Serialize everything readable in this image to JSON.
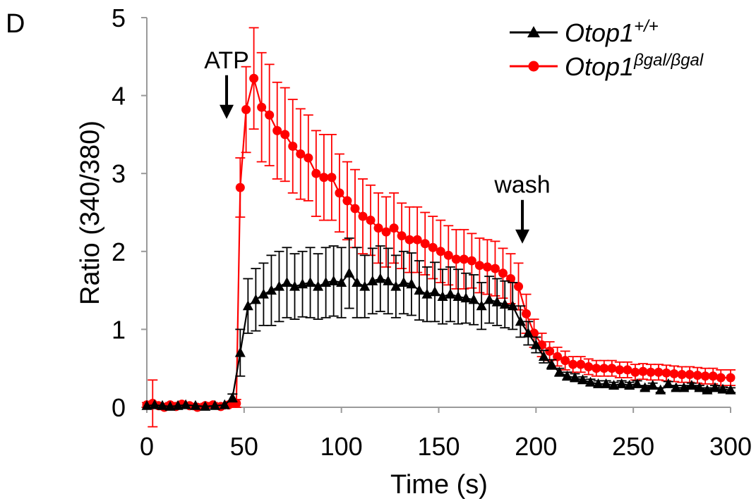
{
  "panel_label": "D",
  "chart_data": {
    "type": "line",
    "title": "",
    "xlabel": "Time (s)",
    "ylabel": "Ratio (340/380)",
    "xlim": [
      0,
      300
    ],
    "ylim": [
      0,
      5
    ],
    "xticks": [
      0,
      50,
      100,
      150,
      200,
      250,
      300
    ],
    "yticks": [
      0,
      1,
      2,
      3,
      4,
      5
    ],
    "grid": false,
    "legend": "top-right",
    "annotations": [
      {
        "text": "ATP",
        "x": 41,
        "arrow_tip_y": 3.7
      },
      {
        "text": "wash",
        "x": 193,
        "arrow_tip_y": 2.1
      }
    ],
    "series": [
      {
        "name": "Otop1+/+",
        "legend_base": "Otop1",
        "legend_sup": "+/+",
        "color": "#000000",
        "marker": "triangle",
        "points": [
          [
            0,
            0.02
          ],
          [
            4,
            0.03
          ],
          [
            8,
            0.02
          ],
          [
            12,
            0.01
          ],
          [
            16,
            0.02
          ],
          [
            20,
            0.03
          ],
          [
            25,
            0.02
          ],
          [
            30,
            0.01
          ],
          [
            35,
            0.02
          ],
          [
            40,
            0.03
          ],
          [
            44,
            0.12
          ],
          [
            48,
            0.7
          ],
          [
            52,
            1.3
          ],
          [
            56,
            1.38
          ],
          [
            60,
            1.45
          ],
          [
            64,
            1.5
          ],
          [
            68,
            1.55
          ],
          [
            72,
            1.6
          ],
          [
            76,
            1.55
          ],
          [
            80,
            1.58
          ],
          [
            84,
            1.6
          ],
          [
            88,
            1.55
          ],
          [
            92,
            1.6
          ],
          [
            96,
            1.62
          ],
          [
            100,
            1.6
          ],
          [
            104,
            1.72
          ],
          [
            108,
            1.6
          ],
          [
            112,
            1.55
          ],
          [
            116,
            1.62
          ],
          [
            120,
            1.65
          ],
          [
            124,
            1.62
          ],
          [
            128,
            1.55
          ],
          [
            132,
            1.6
          ],
          [
            136,
            1.58
          ],
          [
            140,
            1.5
          ],
          [
            144,
            1.45
          ],
          [
            148,
            1.48
          ],
          [
            152,
            1.42
          ],
          [
            156,
            1.45
          ],
          [
            160,
            1.42
          ],
          [
            164,
            1.4
          ],
          [
            168,
            1.38
          ],
          [
            172,
            1.3
          ],
          [
            176,
            1.38
          ],
          [
            180,
            1.35
          ],
          [
            184,
            1.32
          ],
          [
            188,
            1.3
          ],
          [
            192,
            1.1
          ],
          [
            196,
            0.95
          ],
          [
            200,
            0.8
          ],
          [
            204,
            0.65
          ],
          [
            208,
            0.55
          ],
          [
            212,
            0.45
          ],
          [
            216,
            0.4
          ],
          [
            220,
            0.38
          ],
          [
            224,
            0.35
          ],
          [
            228,
            0.32
          ],
          [
            232,
            0.3
          ],
          [
            236,
            0.3
          ],
          [
            240,
            0.28
          ],
          [
            244,
            0.3
          ],
          [
            248,
            0.28
          ],
          [
            252,
            0.3
          ],
          [
            256,
            0.25
          ],
          [
            260,
            0.28
          ],
          [
            264,
            0.22
          ],
          [
            268,
            0.3
          ],
          [
            272,
            0.25
          ],
          [
            276,
            0.25
          ],
          [
            280,
            0.28
          ],
          [
            284,
            0.25
          ],
          [
            288,
            0.22
          ],
          [
            292,
            0.25
          ],
          [
            296,
            0.23
          ],
          [
            300,
            0.22
          ]
        ],
        "errors": [
          0.02,
          0.02,
          0.02,
          0.02,
          0.02,
          0.02,
          0.02,
          0.02,
          0.02,
          0.02,
          0.05,
          0.3,
          0.35,
          0.4,
          0.4,
          0.45,
          0.45,
          0.45,
          0.42,
          0.42,
          0.45,
          0.42,
          0.45,
          0.45,
          0.45,
          0.45,
          0.45,
          0.4,
          0.42,
          0.42,
          0.42,
          0.4,
          0.4,
          0.4,
          0.38,
          0.35,
          0.38,
          0.35,
          0.35,
          0.35,
          0.32,
          0.32,
          0.3,
          0.3,
          0.3,
          0.3,
          0.3,
          0.2,
          0.15,
          0.1,
          0.08,
          0.06,
          0.05,
          0.05,
          0.05,
          0.04,
          0.04,
          0.04,
          0.04,
          0.04,
          0.04,
          0.04,
          0.04,
          0.03,
          0.03,
          0.03,
          0.03,
          0.03,
          0.03,
          0.03,
          0.03,
          0.03,
          0.03,
          0.03,
          0.03
        ]
      },
      {
        "name": "Otop1βgal/βgal",
        "legend_base": "Otop1",
        "legend_sup": "βgal/βgal",
        "color": "#ff0000",
        "marker": "circle",
        "points": [
          [
            0,
            0.03
          ],
          [
            3,
            0.05
          ],
          [
            6,
            0.02
          ],
          [
            9,
            0.0
          ],
          [
            12,
            0.03
          ],
          [
            15,
            0.01
          ],
          [
            18,
            0.04
          ],
          [
            22,
            0.02
          ],
          [
            26,
            0.0
          ],
          [
            30,
            0.02
          ],
          [
            34,
            0.03
          ],
          [
            38,
            0.01
          ],
          [
            42,
            0.03
          ],
          [
            46,
            0.05
          ],
          [
            48,
            2.82
          ],
          [
            51,
            3.82
          ],
          [
            55,
            4.22
          ],
          [
            59,
            3.85
          ],
          [
            63,
            3.75
          ],
          [
            67,
            3.55
          ],
          [
            71,
            3.5
          ],
          [
            75,
            3.35
          ],
          [
            79,
            3.25
          ],
          [
            83,
            3.2
          ],
          [
            87,
            3.0
          ],
          [
            91,
            2.95
          ],
          [
            95,
            2.95
          ],
          [
            99,
            2.75
          ],
          [
            103,
            2.65
          ],
          [
            107,
            2.55
          ],
          [
            111,
            2.45
          ],
          [
            115,
            2.4
          ],
          [
            119,
            2.3
          ],
          [
            123,
            2.25
          ],
          [
            127,
            2.3
          ],
          [
            131,
            2.2
          ],
          [
            135,
            2.15
          ],
          [
            139,
            2.15
          ],
          [
            143,
            2.1
          ],
          [
            147,
            2.05
          ],
          [
            151,
            2.0
          ],
          [
            155,
            1.95
          ],
          [
            159,
            1.9
          ],
          [
            163,
            1.9
          ],
          [
            167,
            1.88
          ],
          [
            171,
            1.82
          ],
          [
            175,
            1.8
          ],
          [
            179,
            1.78
          ],
          [
            183,
            1.72
          ],
          [
            187,
            1.65
          ],
          [
            191,
            1.55
          ],
          [
            195,
            1.2
          ],
          [
            199,
            0.95
          ],
          [
            203,
            0.8
          ],
          [
            207,
            0.72
          ],
          [
            211,
            0.65
          ],
          [
            215,
            0.6
          ],
          [
            219,
            0.55
          ],
          [
            223,
            0.55
          ],
          [
            227,
            0.52
          ],
          [
            231,
            0.5
          ],
          [
            235,
            0.5
          ],
          [
            239,
            0.5
          ],
          [
            243,
            0.48
          ],
          [
            247,
            0.48
          ],
          [
            251,
            0.45
          ],
          [
            255,
            0.46
          ],
          [
            259,
            0.45
          ],
          [
            263,
            0.45
          ],
          [
            267,
            0.44
          ],
          [
            271,
            0.43
          ],
          [
            275,
            0.42
          ],
          [
            279,
            0.42
          ],
          [
            283,
            0.41
          ],
          [
            287,
            0.4
          ],
          [
            291,
            0.4
          ],
          [
            295,
            0.38
          ],
          [
            300,
            0.38
          ]
        ],
        "errors": [
          0.03,
          0.3,
          0.03,
          0.03,
          0.03,
          0.03,
          0.03,
          0.03,
          0.03,
          0.03,
          0.03,
          0.03,
          0.03,
          0.05,
          0.38,
          0.55,
          0.65,
          0.7,
          0.65,
          0.62,
          0.6,
          0.6,
          0.58,
          0.55,
          0.55,
          0.55,
          0.55,
          0.5,
          0.5,
          0.5,
          0.48,
          0.45,
          0.45,
          0.45,
          0.45,
          0.42,
          0.42,
          0.42,
          0.4,
          0.4,
          0.4,
          0.38,
          0.38,
          0.38,
          0.35,
          0.35,
          0.35,
          0.35,
          0.32,
          0.32,
          0.3,
          0.25,
          0.18,
          0.15,
          0.12,
          0.12,
          0.12,
          0.1,
          0.1,
          0.1,
          0.1,
          0.1,
          0.1,
          0.1,
          0.1,
          0.1,
          0.1,
          0.1,
          0.1,
          0.1,
          0.1,
          0.1,
          0.1,
          0.1,
          0.1,
          0.1,
          0.1,
          0.1
        ]
      }
    ]
  }
}
